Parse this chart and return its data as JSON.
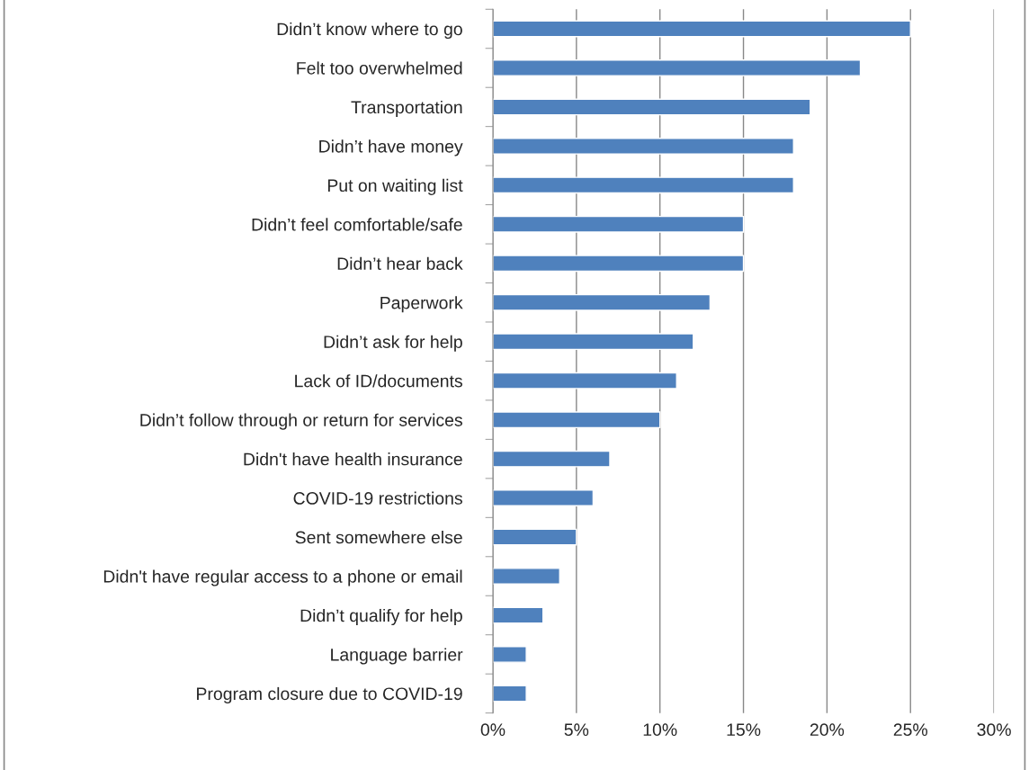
{
  "chart_data": {
    "type": "bar",
    "orientation": "horizontal",
    "categories": [
      "Didn’t know where to go",
      "Felt too overwhelmed",
      "Transportation",
      "Didn’t have money",
      "Put on waiting list",
      "Didn’t feel comfortable/safe",
      "Didn’t hear back",
      "Paperwork",
      "Didn’t ask for help",
      "Lack of ID/documents",
      "Didn’t follow through or return for services",
      "Didn't have health insurance",
      "COVID-19 restrictions",
      "Sent somewhere else",
      "Didn't have regular access to a phone or email",
      "Didn’t qualify for help",
      "Language barrier",
      "Program closure due to COVID-19"
    ],
    "values": [
      25,
      22,
      19,
      18,
      18,
      15,
      15,
      13,
      12,
      11,
      10,
      7,
      6,
      5,
      4,
      3,
      2,
      2
    ],
    "color": "#4f81bd",
    "xlim": [
      0,
      30
    ],
    "xticks": [
      {
        "value": 0,
        "label": "0%"
      },
      {
        "value": 5,
        "label": "5%"
      },
      {
        "value": 10,
        "label": "10%"
      },
      {
        "value": 15,
        "label": "15%"
      },
      {
        "value": 20,
        "label": "20%"
      },
      {
        "value": 25,
        "label": "25%"
      },
      {
        "value": 30,
        "label": "30%"
      }
    ],
    "grid": "x",
    "legend": false
  }
}
